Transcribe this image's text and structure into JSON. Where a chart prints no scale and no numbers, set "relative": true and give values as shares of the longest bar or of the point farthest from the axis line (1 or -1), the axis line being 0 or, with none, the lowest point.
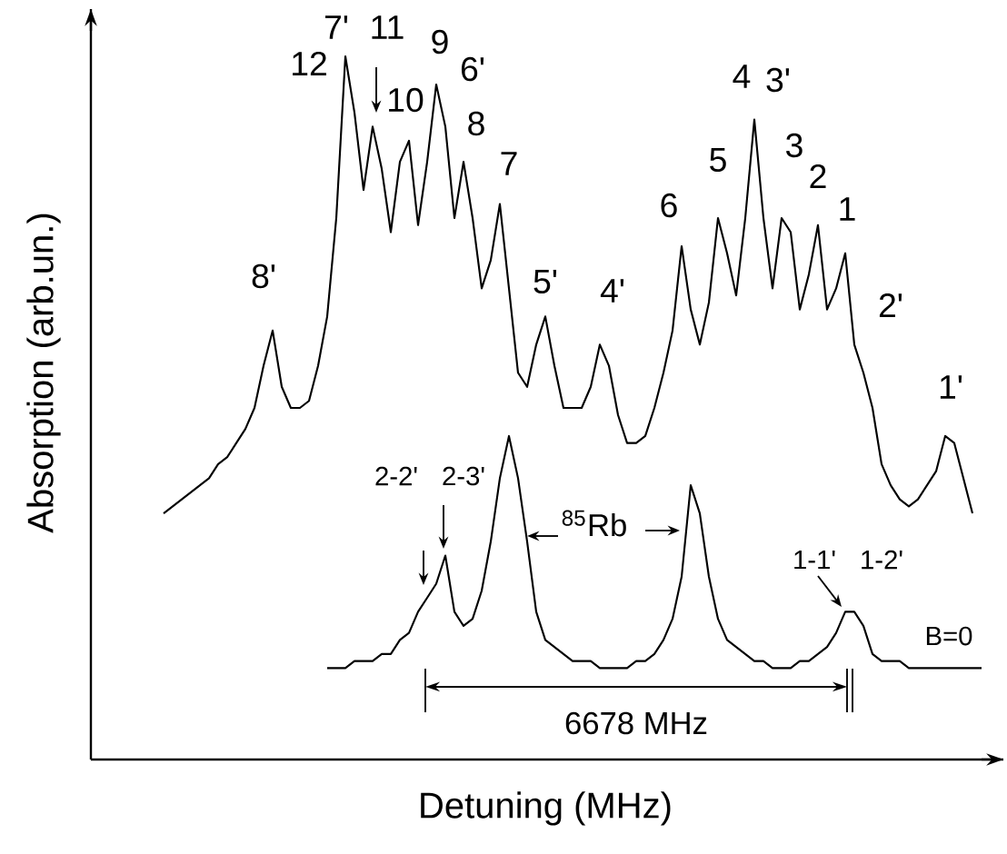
{
  "chart_data": {
    "type": "line",
    "relative": true,
    "xlabel": "Detuning (MHz)",
    "ylabel": "Absorption (arb.un.)",
    "categories": [
      null,
      null,
      null,
      null,
      null,
      null,
      null,
      null,
      null,
      null,
      null,
      null,
      null,
      null,
      null,
      null,
      null,
      null,
      null,
      null,
      null,
      null,
      null,
      null,
      null,
      null,
      null,
      null,
      null,
      null,
      null,
      null,
      null,
      null,
      null,
      null,
      null,
      null,
      null,
      null,
      null,
      null,
      null,
      null,
      null,
      null,
      null,
      null,
      null,
      null,
      null,
      null,
      null,
      null,
      null,
      null,
      null,
      null,
      null,
      null,
      null,
      null,
      null,
      null,
      null,
      null,
      null,
      null,
      null,
      null,
      null,
      null,
      null,
      null,
      null,
      null,
      null,
      null,
      null,
      null,
      null,
      null,
      null,
      null,
      null,
      null,
      null,
      null,
      null,
      null,
      null
    ],
    "series": [
      {
        "color": "#000000",
        "values": [
          0.35,
          0.36,
          0.37,
          0.38,
          0.39,
          0.4,
          0.42,
          0.43,
          0.45,
          0.47,
          0.5,
          0.56,
          0.61,
          0.53,
          0.5,
          0.5,
          0.51,
          0.56,
          0.63,
          0.77,
          1,
          0.92,
          0.81,
          0.9,
          0.84,
          0.75,
          0.85,
          0.88,
          0.76,
          0.85,
          0.96,
          0.9,
          0.77,
          0.85,
          0.77,
          0.67,
          0.71,
          0.79,
          0.67,
          0.55,
          0.53,
          0.59,
          0.63,
          0.56,
          0.5,
          0.5,
          0.5,
          0.53,
          0.59,
          0.56,
          0.49,
          0.45,
          0.45,
          0.46,
          0.5,
          0.55,
          0.61,
          0.73,
          0.64,
          0.59,
          0.65,
          0.77,
          0.72,
          0.66,
          0.77,
          0.91,
          0.77,
          0.67,
          0.77,
          0.75,
          0.64,
          0.69,
          0.76,
          0.64,
          0.67,
          0.72,
          0.59,
          0.55,
          0.5,
          0.42,
          0.39,
          0.37,
          0.36,
          0.37,
          0.39,
          0.41,
          0.46,
          0.45,
          0.4,
          0.35,
          null
        ]
      },
      {
        "color": "#000000",
        "values": [
          null,
          null,
          null,
          null,
          null,
          null,
          null,
          null,
          null,
          null,
          null,
          null,
          null,
          null,
          null,
          null,
          null,
          null,
          0.13,
          0.13,
          0.13,
          0.14,
          0.14,
          0.14,
          0.15,
          0.15,
          0.17,
          0.18,
          0.21,
          0.23,
          0.25,
          0.29,
          0.21,
          0.19,
          0.2,
          0.24,
          0.31,
          0.4,
          0.46,
          0.4,
          0.31,
          0.21,
          0.17,
          0.16,
          0.15,
          0.14,
          0.14,
          0.14,
          0.13,
          0.13,
          0.13,
          0.13,
          0.14,
          0.14,
          0.15,
          0.17,
          0.2,
          0.26,
          0.39,
          0.35,
          0.26,
          0.2,
          0.17,
          0.16,
          0.15,
          0.14,
          0.14,
          0.13,
          0.13,
          0.13,
          0.14,
          0.14,
          0.15,
          0.16,
          0.18,
          0.21,
          0.21,
          0.19,
          0.15,
          0.14,
          0.14,
          0.14,
          0.13,
          0.13,
          0.13,
          0.13,
          0.13,
          0.13,
          0.13,
          0.13,
          0.13
        ]
      }
    ],
    "annotations": [
      "12",
      "7'",
      "11",
      "10",
      "9",
      "6'",
      "8",
      "7",
      "8'",
      "5'",
      "4'",
      "6",
      "5",
      "4",
      "3'",
      "3",
      "2",
      "1",
      "2'",
      "1'",
      "2-2'",
      "2-3'",
      "$^{85}$Rb",
      "1-1'",
      "1-2'",
      "B=0",
      "6678 MHz"
    ]
  }
}
